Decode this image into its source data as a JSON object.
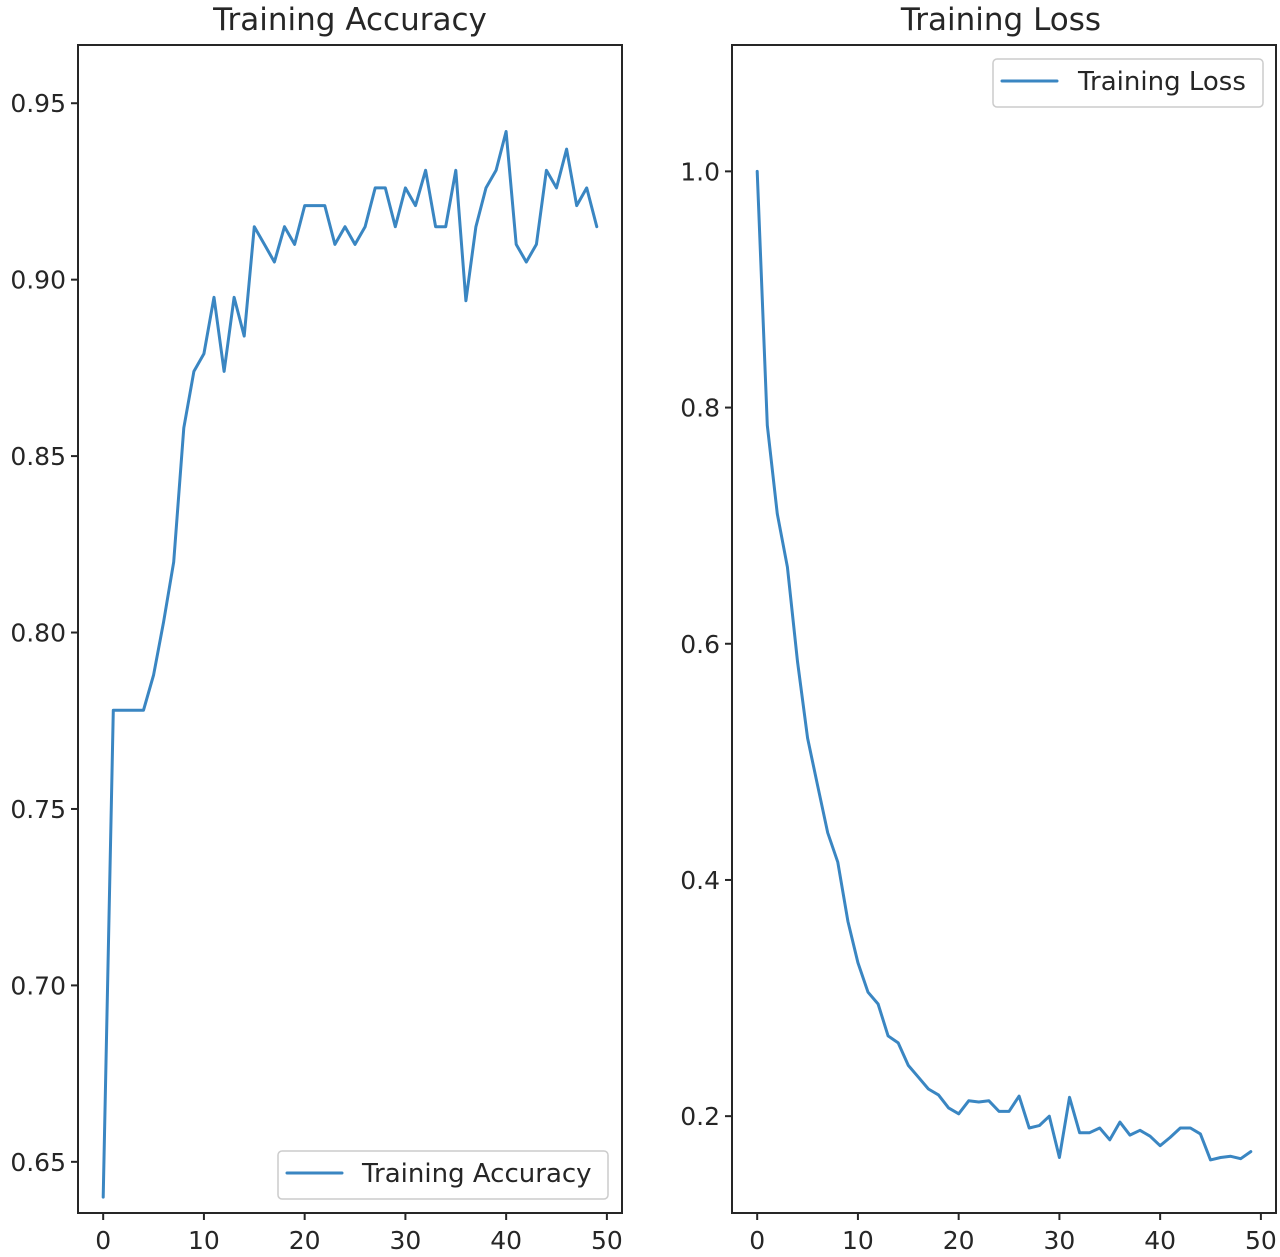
{
  "series_color": "#3a86c2",
  "chart_data": [
    {
      "type": "line",
      "title": "Training Accuracy",
      "xlabel": "",
      "ylabel": "",
      "xlim": [
        -2.5,
        51.5
      ],
      "ylim": [
        0.6355,
        0.9665
      ],
      "xticks": [
        0,
        10,
        20,
        30,
        40,
        50
      ],
      "yticks": [
        0.65,
        0.7,
        0.75,
        0.8,
        0.85,
        0.9,
        0.95
      ],
      "ytick_labels": [
        "0.65",
        "0.70",
        "0.75",
        "0.80",
        "0.85",
        "0.90",
        "0.95"
      ],
      "legend_position": "lower-right",
      "grid": false,
      "series": [
        {
          "name": "Training Accuracy",
          "x": [
            0,
            1,
            2,
            3,
            4,
            5,
            6,
            7,
            8,
            9,
            10,
            11,
            12,
            13,
            14,
            15,
            16,
            17,
            18,
            19,
            20,
            21,
            22,
            23,
            24,
            25,
            26,
            27,
            28,
            29,
            30,
            31,
            32,
            33,
            34,
            35,
            36,
            37,
            38,
            39,
            40,
            41,
            42,
            43,
            44,
            45,
            46,
            47,
            48,
            49
          ],
          "y": [
            0.64,
            0.778,
            0.778,
            0.778,
            0.778,
            0.788,
            0.803,
            0.82,
            0.858,
            0.874,
            0.879,
            0.895,
            0.874,
            0.895,
            0.884,
            0.915,
            0.91,
            0.905,
            0.915,
            0.91,
            0.921,
            0.921,
            0.921,
            0.91,
            0.915,
            0.91,
            0.915,
            0.926,
            0.926,
            0.915,
            0.926,
            0.921,
            0.931,
            0.915,
            0.915,
            0.931,
            0.894,
            0.915,
            0.926,
            0.931,
            0.942,
            0.91,
            0.905,
            0.91,
            0.931,
            0.926,
            0.937,
            0.921,
            0.926,
            0.915
          ]
        }
      ]
    },
    {
      "type": "line",
      "title": "Training Loss",
      "xlabel": "",
      "ylabel": "",
      "xlim": [
        -2.5,
        51.5
      ],
      "ylim": [
        0.118,
        1.107
      ],
      "xticks": [
        0,
        10,
        20,
        30,
        40,
        50
      ],
      "yticks": [
        0.2,
        0.4,
        0.6,
        0.8,
        1.0
      ],
      "ytick_labels": [
        "0.2",
        "0.4",
        "0.6",
        "0.8",
        "1.0"
      ],
      "legend_position": "upper-right",
      "grid": false,
      "series": [
        {
          "name": "Training Loss",
          "x": [
            0,
            1,
            2,
            3,
            4,
            5,
            6,
            7,
            8,
            9,
            10,
            11,
            12,
            13,
            14,
            15,
            16,
            17,
            18,
            19,
            20,
            21,
            22,
            23,
            24,
            25,
            26,
            27,
            28,
            29,
            30,
            31,
            32,
            33,
            34,
            35,
            36,
            37,
            38,
            39,
            40,
            41,
            42,
            43,
            44,
            45,
            46,
            47,
            48,
            49
          ],
          "y": [
            1.0,
            0.785,
            0.71,
            0.665,
            0.585,
            0.52,
            0.48,
            0.44,
            0.415,
            0.365,
            0.33,
            0.305,
            0.295,
            0.268,
            0.262,
            0.243,
            0.233,
            0.223,
            0.218,
            0.207,
            0.202,
            0.213,
            0.212,
            0.213,
            0.204,
            0.204,
            0.217,
            0.19,
            0.192,
            0.2,
            0.165,
            0.216,
            0.186,
            0.186,
            0.19,
            0.18,
            0.195,
            0.184,
            0.188,
            0.183,
            0.175,
            0.182,
            0.19,
            0.19,
            0.185,
            0.163,
            0.165,
            0.166,
            0.164,
            0.17
          ]
        }
      ]
    }
  ]
}
